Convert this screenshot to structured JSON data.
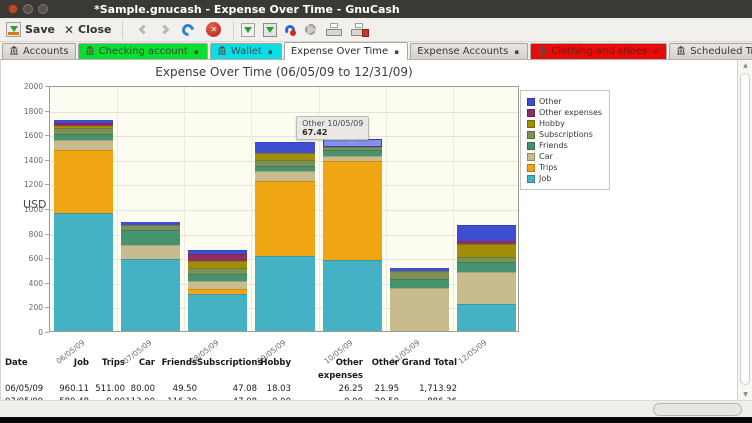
{
  "window": {
    "title": "*Sample.gnucash - Expense Over Time - GnuCash"
  },
  "toolbar": {
    "save_label": "Save",
    "close_label": "Close"
  },
  "tabs": [
    {
      "label": "Accounts",
      "active": false,
      "icon": true,
      "close": false,
      "bg": "",
      "text": ""
    },
    {
      "label": "Checking account",
      "active": false,
      "icon": true,
      "close": true,
      "bg": "#0adf31",
      "text": "#2f4f33"
    },
    {
      "label": "Wallet",
      "active": false,
      "icon": true,
      "close": true,
      "bg": "#0bdde4",
      "text": "#27555a"
    },
    {
      "label": "Expense Over Time",
      "active": true,
      "icon": false,
      "close": true,
      "bg": "",
      "text": ""
    },
    {
      "label": "Expense Accounts",
      "active": false,
      "icon": false,
      "close": true,
      "bg": "",
      "text": ""
    },
    {
      "label": "Clothing and shoes",
      "active": false,
      "icon": true,
      "close": true,
      "bg": "#e60c0c",
      "text": "#7c130d"
    },
    {
      "label": "Scheduled Transactions",
      "active": false,
      "icon": true,
      "close": true,
      "bg": "",
      "text": ""
    }
  ],
  "chart_data": {
    "type": "bar",
    "stacked": true,
    "title": "Expense Over Time (06/05/09 to 12/31/09)",
    "ylabel": "USD",
    "ylim": [
      0,
      2000
    ],
    "ytick_step": 200,
    "grid": true,
    "legend_position": "top-right",
    "categories": [
      "06/05/09",
      "07/05/09",
      "08/05/09",
      "09/05/09",
      "10/05/09",
      "11/05/09",
      "12/05/09"
    ],
    "series": [
      {
        "name": "Job",
        "color": "#44b2c4",
        "values": [
          960.11,
          589.48,
          300,
          610,
          580,
          0,
          217
        ]
      },
      {
        "name": "Trips",
        "color": "#f0a513",
        "values": [
          511,
          0,
          40,
          610,
          800,
          0,
          0
        ]
      },
      {
        "name": "Car",
        "color": "#c8bb8d",
        "values": [
          80,
          113,
          65,
          81,
          45,
          347,
          262
        ]
      },
      {
        "name": "Friends",
        "color": "#48936f",
        "values": [
          49.5,
          116.3,
          57,
          44,
          45,
          75,
          80
        ]
      },
      {
        "name": "Subscriptions",
        "color": "#7e9150",
        "values": [
          47.08,
          47.08,
          47.08,
          47.08,
          25,
          65,
          40
        ]
      },
      {
        "name": "Hobby",
        "color": "#a18d06",
        "values": [
          18.03,
          0,
          57,
          55,
          0,
          0,
          110
        ]
      },
      {
        "name": "Other expenses",
        "color": "#8f2e63",
        "values": [
          26.25,
          0,
          61,
          0,
          0,
          0,
          21
        ]
      },
      {
        "name": "Other",
        "color": "#3d4fd0",
        "values": [
          21.95,
          20.5,
          28,
          90,
          67.42,
          22,
          128
        ]
      }
    ],
    "highlight": {
      "category_index": 4,
      "series": "Other",
      "color": "#8291ea"
    },
    "tooltip": {
      "title": "Other 10/05/09",
      "value": "67.42"
    }
  },
  "table": {
    "headers": [
      "Date",
      "Job",
      "Trips",
      "Car",
      "Friends",
      "Subscriptions",
      "Hobby",
      "Other expenses",
      "Other",
      "Grand Total"
    ],
    "rows": [
      [
        "06/05/09",
        "960.11",
        "511.00",
        "80.00",
        "49.50",
        "47.08",
        "18.03",
        "26.25",
        "21.95",
        "1,713.92"
      ],
      [
        "07/05/09",
        "589.48",
        "0.00",
        "113.00",
        "116.30",
        "47.08",
        "0.00",
        "0.00",
        "20.50",
        "886.36"
      ]
    ]
  }
}
